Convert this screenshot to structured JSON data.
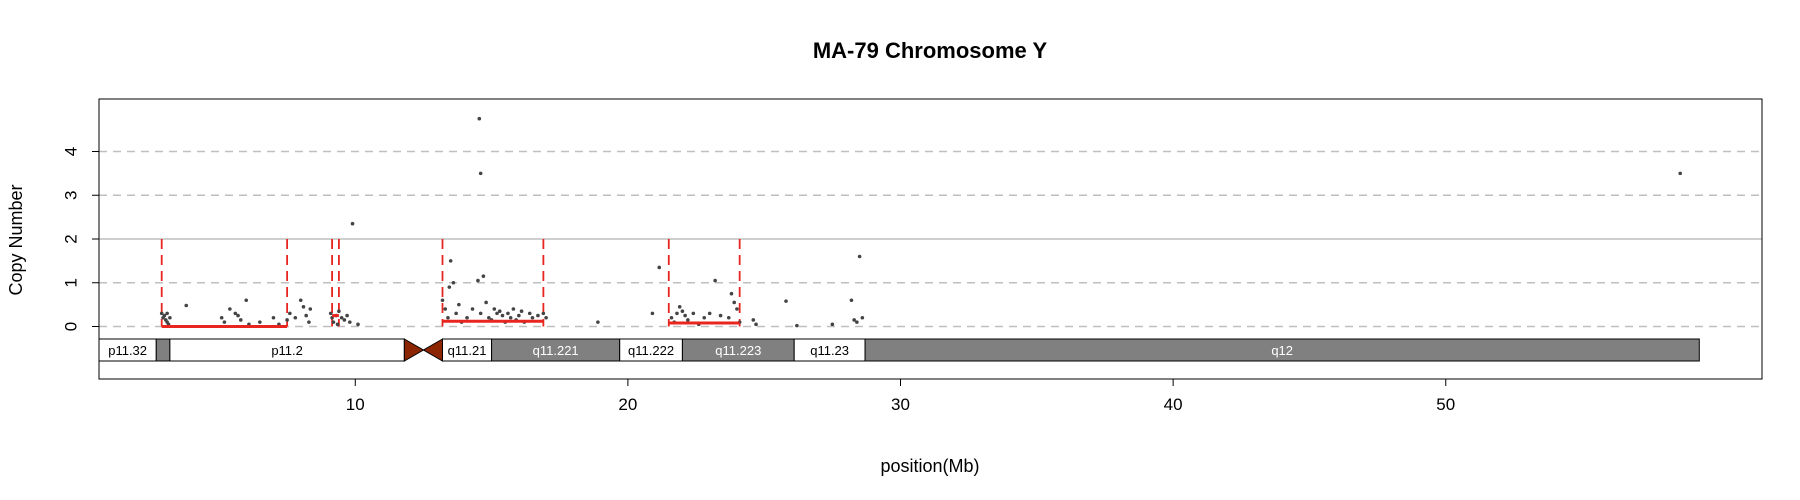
{
  "chart_data": {
    "type": "scatter",
    "title": "MA-79  Chromosome Y",
    "xlabel": "position(Mb)",
    "ylabel": "Copy Number",
    "xlim": [
      0.6,
      61.6
    ],
    "ylim": [
      -1.2,
      5.2
    ],
    "x_ticks": [
      10,
      20,
      30,
      40,
      50
    ],
    "y_ticks": [
      0,
      1,
      2,
      3,
      4
    ],
    "hlines": [
      {
        "y": 0,
        "style": "dashed",
        "color": "#bfbfbf"
      },
      {
        "y": 1,
        "style": "dashed",
        "color": "#bfbfbf"
      },
      {
        "y": 2,
        "style": "solid",
        "color": "#bfbfbf"
      },
      {
        "y": 3,
        "style": "dashed",
        "color": "#bfbfbf"
      },
      {
        "y": 4,
        "style": "dashed",
        "color": "#bfbfbf"
      }
    ],
    "point_color": "#444444",
    "highlight_color": "#e8251f",
    "points": [
      [
        2.9,
        0.3
      ],
      [
        2.95,
        0.2
      ],
      [
        3.0,
        0.25
      ],
      [
        3.05,
        0.15
      ],
      [
        3.1,
        0.1
      ],
      [
        3.1,
        0.3
      ],
      [
        3.15,
        0.05
      ],
      [
        3.2,
        0.2
      ],
      [
        3.8,
        0.48
      ],
      [
        5.1,
        0.2
      ],
      [
        5.2,
        0.1
      ],
      [
        5.4,
        0.4
      ],
      [
        5.6,
        0.3
      ],
      [
        5.7,
        0.25
      ],
      [
        5.8,
        0.15
      ],
      [
        6.0,
        0.6
      ],
      [
        6.1,
        0.05
      ],
      [
        6.5,
        0.1
      ],
      [
        7.0,
        0.2
      ],
      [
        7.2,
        0.05
      ],
      [
        7.5,
        0.15
      ],
      [
        7.6,
        0.3
      ],
      [
        7.8,
        0.2
      ],
      [
        8.0,
        0.6
      ],
      [
        8.1,
        0.45
      ],
      [
        8.2,
        0.25
      ],
      [
        8.3,
        0.1
      ],
      [
        8.35,
        0.4
      ],
      [
        9.1,
        0.3
      ],
      [
        9.15,
        0.2
      ],
      [
        9.2,
        0.1
      ],
      [
        9.3,
        0.25
      ],
      [
        9.35,
        0.05
      ],
      [
        9.4,
        0.35
      ],
      [
        9.5,
        0.2
      ],
      [
        9.6,
        0.15
      ],
      [
        9.7,
        0.25
      ],
      [
        9.8,
        0.1
      ],
      [
        9.9,
        2.35
      ],
      [
        10.1,
        0.05
      ],
      [
        13.2,
        0.6
      ],
      [
        13.3,
        0.4
      ],
      [
        13.4,
        0.2
      ],
      [
        13.45,
        0.9
      ],
      [
        13.5,
        1.5
      ],
      [
        13.6,
        1.0
      ],
      [
        13.7,
        0.3
      ],
      [
        13.8,
        0.5
      ],
      [
        13.9,
        0.1
      ],
      [
        14.1,
        0.2
      ],
      [
        14.3,
        0.4
      ],
      [
        14.5,
        1.05
      ],
      [
        14.6,
        0.3
      ],
      [
        14.7,
        1.15
      ],
      [
        14.8,
        0.55
      ],
      [
        14.9,
        0.2
      ],
      [
        15.0,
        0.15
      ],
      [
        15.1,
        0.4
      ],
      [
        15.2,
        0.3
      ],
      [
        15.3,
        0.35
      ],
      [
        15.4,
        0.25
      ],
      [
        15.5,
        0.1
      ],
      [
        15.6,
        0.3
      ],
      [
        15.7,
        0.2
      ],
      [
        15.8,
        0.4
      ],
      [
        15.9,
        0.15
      ],
      [
        16.0,
        0.25
      ],
      [
        16.1,
        0.35
      ],
      [
        16.2,
        0.1
      ],
      [
        16.4,
        0.3
      ],
      [
        16.5,
        0.2
      ],
      [
        16.7,
        0.25
      ],
      [
        16.9,
        0.3
      ],
      [
        17.0,
        0.2
      ],
      [
        14.55,
        4.75
      ],
      [
        14.6,
        3.5
      ],
      [
        18.9,
        0.1
      ],
      [
        20.9,
        0.3
      ],
      [
        21.15,
        1.35
      ],
      [
        21.6,
        0.2
      ],
      [
        21.7,
        0.1
      ],
      [
        21.8,
        0.3
      ],
      [
        21.9,
        0.45
      ],
      [
        22.0,
        0.35
      ],
      [
        22.1,
        0.25
      ],
      [
        22.2,
        0.15
      ],
      [
        22.4,
        0.3
      ],
      [
        22.6,
        0.05
      ],
      [
        22.8,
        0.2
      ],
      [
        23.0,
        0.3
      ],
      [
        23.2,
        1.05
      ],
      [
        23.4,
        0.25
      ],
      [
        23.7,
        0.2
      ],
      [
        23.8,
        0.75
      ],
      [
        23.9,
        0.55
      ],
      [
        24.0,
        0.4
      ],
      [
        24.1,
        0.1
      ],
      [
        24.6,
        0.15
      ],
      [
        24.7,
        0.05
      ],
      [
        25.8,
        0.58
      ],
      [
        26.2,
        0.02
      ],
      [
        27.5,
        0.05
      ],
      [
        28.2,
        0.6
      ],
      [
        28.3,
        0.15
      ],
      [
        28.4,
        0.1
      ],
      [
        28.5,
        1.6
      ],
      [
        28.6,
        0.2
      ],
      [
        58.6,
        3.5
      ]
    ],
    "segments": [
      {
        "x0": 2.9,
        "x1": 7.5,
        "y": 0.0
      },
      {
        "x0": 9.15,
        "x1": 9.4,
        "y": 0.25
      },
      {
        "x0": 13.2,
        "x1": 16.9,
        "y": 0.12
      },
      {
        "x0": 21.5,
        "x1": 24.1,
        "y": 0.08
      }
    ],
    "boundaries": [
      {
        "x": 2.9,
        "y1": 2.0
      },
      {
        "x": 7.5,
        "y1": 2.0
      },
      {
        "x": 9.15,
        "y1": 2.0
      },
      {
        "x": 9.4,
        "y1": 2.0
      },
      {
        "x": 13.2,
        "y1": 2.0
      },
      {
        "x": 16.9,
        "y1": 2.0
      },
      {
        "x": 21.5,
        "y1": 2.0
      },
      {
        "x": 24.1,
        "y1": 2.0
      }
    ],
    "ideogram": [
      {
        "name": "p11.32",
        "start": 0.6,
        "end": 2.7,
        "stain": "white"
      },
      {
        "name": "",
        "start": 2.7,
        "end": 3.2,
        "stain": "gray"
      },
      {
        "name": "p11.2",
        "start": 3.2,
        "end": 11.8,
        "stain": "white"
      },
      {
        "name": "q11.21",
        "start": 13.2,
        "end": 15.0,
        "stain": "white"
      },
      {
        "name": "q11.221",
        "start": 15.0,
        "end": 19.7,
        "stain": "gray"
      },
      {
        "name": "q11.222",
        "start": 19.7,
        "end": 22.0,
        "stain": "white"
      },
      {
        "name": "q11.223",
        "start": 22.0,
        "end": 26.1,
        "stain": "gray"
      },
      {
        "name": "q11.23",
        "start": 26.1,
        "end": 28.7,
        "stain": "white"
      },
      {
        "name": "q12",
        "start": 28.7,
        "end": 59.3,
        "stain": "gray"
      }
    ],
    "centromere": {
      "start": 11.8,
      "end": 13.2,
      "color": "#8b2500"
    }
  }
}
